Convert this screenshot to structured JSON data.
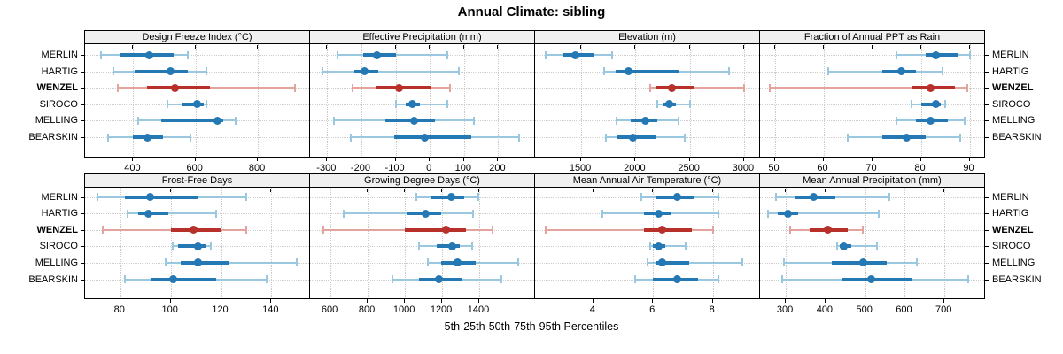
{
  "title": "Annual Climate: sibling",
  "caption": "5th-25th-50th-75th-95th Percentiles",
  "stations": [
    "MERLIN",
    "HARTIG",
    "WENZEL",
    "SIROCO",
    "MELLING",
    "BEARSKIN"
  ],
  "highlight_station": "WENZEL",
  "colors": {
    "blue_dark": "#2478b4",
    "blue_light": "#9ac8e0",
    "red_dark": "#b8302a",
    "red_light": "#e5a39e",
    "grid": "#c9c9c9",
    "strip_bg": "#f0f0f0",
    "border": "#000000"
  },
  "chart_data": {
    "type": "dotplot-percentiles",
    "percentile_labels": [
      "5th",
      "25th",
      "50th",
      "75th",
      "95th"
    ],
    "grid": "dotted",
    "legend": "none",
    "rows_layout": [
      [
        "Design Freeze Index (°C)",
        "Effective Precipitation (mm)",
        "Elevation (m)",
        "Fraction of Annual PPT as Rain"
      ],
      [
        "Frost-Free Days",
        "Growing Degree Days (°C)",
        "Mean Annual Air Temperature (°C)",
        "Mean Annual Precipitation (mm)"
      ]
    ],
    "panels": [
      {
        "title": "Design Freeze Index (°C)",
        "row": 0,
        "col": 0,
        "xlim": [
          245,
          965
        ],
        "ticks": [
          400,
          600,
          800
        ],
        "values": [
          [
            295,
            355,
            450,
            530,
            575
          ],
          [
            335,
            405,
            520,
            575,
            635
          ],
          [
            350,
            445,
            535,
            645,
            920
          ],
          [
            510,
            555,
            605,
            625,
            635
          ],
          [
            415,
            490,
            670,
            690,
            730
          ],
          [
            320,
            400,
            445,
            495,
            585
          ]
        ]
      },
      {
        "title": "Effective Precipitation (mm)",
        "row": 0,
        "col": 1,
        "xlim": [
          -350,
          305
        ],
        "ticks": [
          -300,
          -200,
          -100,
          0,
          100,
          200
        ],
        "values": [
          [
            -270,
            -195,
            -155,
            -100,
            50
          ],
          [
            -315,
            -220,
            -190,
            -150,
            85
          ],
          [
            -225,
            -155,
            -90,
            5,
            60
          ],
          [
            -100,
            -70,
            -50,
            -30,
            50
          ],
          [
            -280,
            -130,
            -45,
            15,
            130
          ],
          [
            -230,
            -105,
            -15,
            120,
            260
          ]
        ]
      },
      {
        "title": "Elevation (m)",
        "row": 0,
        "col": 2,
        "xlim": [
          1075,
          3140
        ],
        "ticks": [
          1500,
          2000,
          2500,
          3000
        ],
        "values": [
          [
            1175,
            1325,
            1450,
            1610,
            1785
          ],
          [
            1715,
            1820,
            1940,
            2400,
            2860
          ],
          [
            2140,
            2195,
            2340,
            2535,
            3000
          ],
          [
            2200,
            2260,
            2310,
            2370,
            2505
          ],
          [
            1825,
            1960,
            2090,
            2205,
            2395
          ],
          [
            1725,
            1825,
            1975,
            2195,
            2455
          ]
        ]
      },
      {
        "title": "Fraction of Annual PPT as Rain",
        "row": 0,
        "col": 3,
        "xlim": [
          47,
          93
        ],
        "ticks": [
          50,
          60,
          70,
          80,
          90
        ],
        "values": [
          [
            75,
            81,
            83,
            87.5,
            90
          ],
          [
            61,
            72,
            76,
            79,
            84.5
          ],
          [
            49,
            78,
            82,
            87,
            89.5
          ],
          [
            78,
            80,
            83,
            84,
            85
          ],
          [
            75,
            79,
            82,
            85.5,
            89
          ],
          [
            65,
            72,
            77,
            81,
            88
          ]
        ]
      },
      {
        "title": "Frost-Free Days",
        "row": 1,
        "col": 0,
        "xlim": [
          66,
          155
        ],
        "ticks": [
          80,
          100,
          120,
          140
        ],
        "values": [
          [
            71,
            82,
            92,
            111,
            130
          ],
          [
            83,
            87,
            91,
            99,
            118
          ],
          [
            73,
            100,
            109,
            120,
            130
          ],
          [
            101,
            103,
            111,
            114,
            116
          ],
          [
            98,
            104,
            111,
            123,
            150
          ],
          [
            82,
            92,
            101,
            118,
            138
          ]
        ]
      },
      {
        "title": "Growing Degree Days (°C)",
        "row": 1,
        "col": 1,
        "xlim": [
          490,
          1695
        ],
        "ticks": [
          600,
          800,
          1000,
          1200,
          1400
        ],
        "values": [
          [
            1060,
            1140,
            1250,
            1320,
            1395
          ],
          [
            670,
            1010,
            1110,
            1195,
            1365
          ],
          [
            560,
            1000,
            1220,
            1330,
            1470
          ],
          [
            1075,
            1170,
            1255,
            1295,
            1360
          ],
          [
            1125,
            1195,
            1285,
            1380,
            1610
          ],
          [
            935,
            1075,
            1185,
            1310,
            1520
          ]
        ]
      },
      {
        "title": "Mean Annual Air Temperature (°C)",
        "row": 1,
        "col": 2,
        "xlim": [
          2.05,
          9.55
        ],
        "ticks": [
          4,
          6,
          8
        ],
        "values": [
          [
            5.6,
            6.1,
            6.8,
            7.4,
            8.2
          ],
          [
            4.3,
            5.7,
            6.2,
            6.6,
            8.2
          ],
          [
            2.4,
            5.7,
            6.3,
            7.3,
            8.0
          ],
          [
            5.9,
            6.0,
            6.2,
            6.4,
            7.1
          ],
          [
            5.8,
            6.1,
            6.3,
            7.2,
            9.0
          ],
          [
            5.4,
            6.0,
            6.8,
            7.5,
            8.2
          ]
        ]
      },
      {
        "title": "Mean Annual Precipitation (mm)",
        "row": 1,
        "col": 3,
        "xlim": [
          235,
          800
        ],
        "ticks": [
          300,
          400,
          500,
          600,
          700
        ],
        "values": [
          [
            275,
            325,
            370,
            425,
            560
          ],
          [
            255,
            280,
            305,
            330,
            535
          ],
          [
            310,
            360,
            405,
            455,
            495
          ],
          [
            430,
            435,
            445,
            465,
            530
          ],
          [
            295,
            415,
            495,
            555,
            630
          ],
          [
            290,
            440,
            515,
            620,
            760
          ]
        ]
      }
    ]
  }
}
